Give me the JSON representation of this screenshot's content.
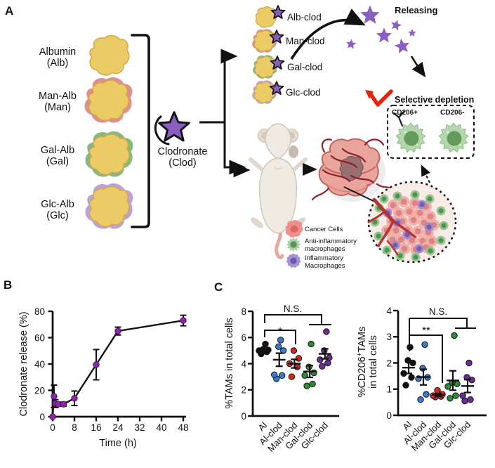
{
  "figure": {
    "panels": {
      "a": "A",
      "b": "B",
      "c": "C"
    }
  },
  "panel_a": {
    "albumin_variants": [
      {
        "line1": "Albumin",
        "line2": "(Alb)",
        "rim_color": "none"
      },
      {
        "line1": "Man-Alb",
        "line2": "(Man)",
        "rim_color": "#DC9092"
      },
      {
        "line1": "Gal-Alb",
        "line2": "(Gal)",
        "rim_color": "#86B97E"
      },
      {
        "line1": "Glc-Alb",
        "line2": "(Glc)",
        "rim_color": "#BBA2D8"
      }
    ],
    "clodronate": {
      "line1": "Clodronate",
      "line2": "(Clod)"
    },
    "conjugates": [
      "Alb-clod",
      "Man-clod",
      "Gal-clod",
      "Glc-clod"
    ],
    "releasing_label": "Releasing",
    "selective_depletion_label": "Selective depletion",
    "cd206_positive_label": "CD206+",
    "cd206_negative_label": "CD206-",
    "legend": [
      {
        "line1": "Cancer Cells",
        "line2": "",
        "color": "#EF8F8B"
      },
      {
        "line1": "Anti-inflammatory",
        "line2": "macrophages",
        "color": "#A8D0A0"
      },
      {
        "line1": "Inflammatory",
        "line2": "Macrophages",
        "color": "#A393D2"
      }
    ],
    "colors": {
      "star_purple": "#8A5EC2",
      "releasing_text": "#9268C8",
      "depletion_red": "#E8210A",
      "albumin_yellow": "#EACB66"
    }
  },
  "chart_data": [
    {
      "type": "line",
      "panel": "B",
      "xlabel": "Time (h)",
      "ylabel": "Clodronate release (%)",
      "x": [
        0,
        0.5,
        1,
        2,
        4,
        8,
        16,
        24,
        48
      ],
      "y": [
        0,
        15.5,
        10,
        9.5,
        9.5,
        14,
        39.5,
        65,
        73
      ],
      "yerr": [
        0,
        8.5,
        3,
        1.5,
        1.5,
        5.5,
        11.5,
        3,
        4
      ],
      "xticks": [
        0,
        8,
        16,
        24,
        32,
        40,
        48
      ],
      "yticks": [
        0,
        20,
        40,
        60,
        80
      ],
      "xlim": [
        0,
        48
      ],
      "ylim": [
        0,
        80
      ],
      "grid": false,
      "marker_color": "#8E24AA",
      "line_color": "#111111"
    },
    {
      "type": "scatter",
      "panel": "C-left",
      "ylabel": "%TAMs in total cells",
      "categories": [
        "Al",
        "Al-clod",
        "Man-clod",
        "Gal-clod",
        "Glc-clod"
      ],
      "point_colors": [
        "#111111",
        "#3B7AC9",
        "#D3281E",
        "#2F8B37",
        "#6B2D92"
      ],
      "yticks": [
        0,
        2,
        4,
        6,
        8
      ],
      "ylim": [
        0,
        8
      ],
      "series": [
        {
          "name": "Al",
          "values": [
            4.75,
            4.9,
            5.0,
            5.05,
            5.1,
            5.5
          ],
          "mean": 5.0,
          "sem": 0.12
        },
        {
          "name": "Al-clod",
          "values": [
            2.85,
            3.1,
            3.15,
            5.0,
            5.3,
            5.8
          ],
          "mean": 4.3,
          "sem": 0.5
        },
        {
          "name": "Man-clod",
          "values": [
            3.0,
            3.75,
            4.0,
            4.4,
            5.0
          ],
          "mean": 4.0,
          "sem": 0.33
        },
        {
          "name": "Gal-clod",
          "values": [
            2.3,
            2.45,
            3.1,
            3.3,
            3.75,
            5.5
          ],
          "mean": 3.4,
          "sem": 0.45
        },
        {
          "name": "Glc-clod",
          "values": [
            3.8,
            4.05,
            4.3,
            4.45,
            5.0,
            6.45
          ],
          "mean": 4.75,
          "sem": 0.38
        }
      ],
      "significance": [
        {
          "label": "*",
          "comparison": "Al vs Man-clod"
        },
        {
          "label": "N.S.",
          "comparison": "Al vs Gal-clod, Glc-clod"
        }
      ]
    },
    {
      "type": "scatter",
      "panel": "C-right",
      "ylabel": "%CD206+TAMs in total cells",
      "ylabel_display": {
        "l1a": "%CD206",
        "sup": "+",
        "l1b": "TAMs",
        "l2": "in total cells"
      },
      "categories": [
        "Al",
        "Al-clod",
        "Man-clod",
        "Gal-clod",
        "Glc-clod"
      ],
      "point_colors": [
        "#111111",
        "#3B7AC9",
        "#D3281E",
        "#2F8B37",
        "#6B2D92"
      ],
      "yticks": [
        0,
        1,
        2,
        3,
        4
      ],
      "ylim": [
        0,
        4
      ],
      "series": [
        {
          "name": "Al",
          "values": [
            1.15,
            1.45,
            1.6,
            2.0,
            2.1,
            2.6
          ],
          "mean": 1.82,
          "sem": 0.22
        },
        {
          "name": "Al-clod",
          "values": [
            0.6,
            0.8,
            1.4,
            1.45,
            1.8,
            2.7
          ],
          "mean": 1.46,
          "sem": 0.3
        },
        {
          "name": "Man-clod",
          "values": [
            0.7,
            0.72,
            0.75,
            0.8,
            0.95
          ],
          "mean": 0.78,
          "sem": 0.05
        },
        {
          "name": "Gal-clod",
          "values": [
            0.65,
            0.75,
            1.1,
            1.2,
            1.25,
            3.05
          ],
          "mean": 1.33,
          "sem": 0.37
        },
        {
          "name": "Glc-clod",
          "values": [
            0.55,
            0.6,
            0.75,
            1.35,
            1.45,
            2.0
          ],
          "mean": 1.12,
          "sem": 0.25
        }
      ],
      "significance": [
        {
          "label": "**",
          "comparison": "Al vs Man-clod"
        },
        {
          "label": "N.S.",
          "comparison": "Al vs Gal-clod, Glc-clod"
        }
      ]
    }
  ]
}
